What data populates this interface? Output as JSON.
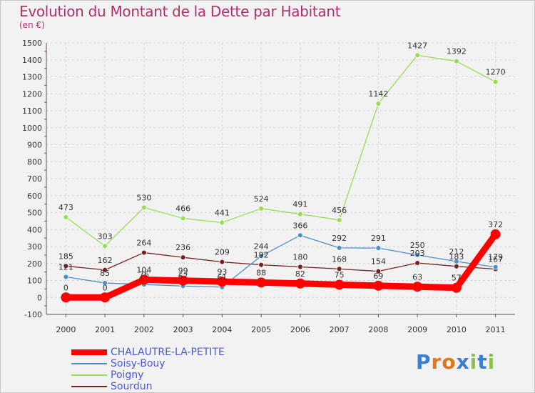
{
  "title": "Evolution du Montant de la Dette par Habitant",
  "subtitle": "(en €)",
  "logo_text": "Proxiti",
  "chart_data": {
    "type": "line",
    "title": "Evolution du Montant de la Dette par Habitant",
    "ylabel": "(en €)",
    "xlabel": "",
    "x": [
      "2000",
      "2001",
      "2002",
      "2003",
      "2004",
      "2005",
      "2006",
      "2007",
      "2008",
      "2009",
      "2010",
      "2011"
    ],
    "ylim": [
      -100,
      1500
    ],
    "yticks": [
      -100,
      0,
      100,
      200,
      300,
      400,
      500,
      600,
      700,
      800,
      900,
      1000,
      1100,
      1200,
      1300,
      1400,
      1500
    ],
    "grid": true,
    "legend_position": "bottom",
    "series": [
      {
        "name": "CHALAUTRE-LA-PETITE",
        "color": "#ff0000",
        "values": [
          0,
          0,
          104,
          99,
          93,
          88,
          82,
          75,
          69,
          63,
          57,
          372
        ],
        "labels": [
          "0",
          "0",
          "104",
          "99",
          "93",
          "88",
          "82",
          "75",
          "69",
          "63",
          "57",
          "372"
        ]
      },
      {
        "name": "Soisy-Bouy",
        "color": "#4d8fc9",
        "values": [
          121,
          85,
          76,
          67,
          61,
          244,
          366,
          292,
          291,
          250,
          212,
          179
        ],
        "labels": [
          "121",
          "85",
          "76",
          "67",
          "61",
          "244",
          "366",
          "292",
          "291",
          "250",
          "212",
          "179"
        ]
      },
      {
        "name": "Poigny",
        "color": "#99dd55",
        "values": [
          473,
          303,
          530,
          466,
          441,
          524,
          491,
          456,
          1142,
          1427,
          1392,
          1270
        ],
        "labels": [
          "473",
          "303",
          "530",
          "466",
          "441",
          "524",
          "491",
          "456",
          "1142",
          "1427",
          "1392",
          "1270"
        ]
      },
      {
        "name": "Sourdun",
        "color": "#772222",
        "values": [
          185,
          162,
          264,
          236,
          209,
          192,
          180,
          168,
          154,
          203,
          183,
          167
        ],
        "labels": [
          "185",
          "162",
          "264",
          "236",
          "209",
          "192",
          "180",
          "168",
          "154",
          "203",
          "183",
          "167"
        ]
      }
    ]
  },
  "legend": [
    {
      "label": "CHALAUTRE-LA-PETITE",
      "color": "#ff0000"
    },
    {
      "label": "Soisy-Bouy",
      "color": "#4d8fc9"
    },
    {
      "label": "Poigny",
      "color": "#99dd55"
    },
    {
      "label": "Sourdun",
      "color": "#772222"
    }
  ]
}
